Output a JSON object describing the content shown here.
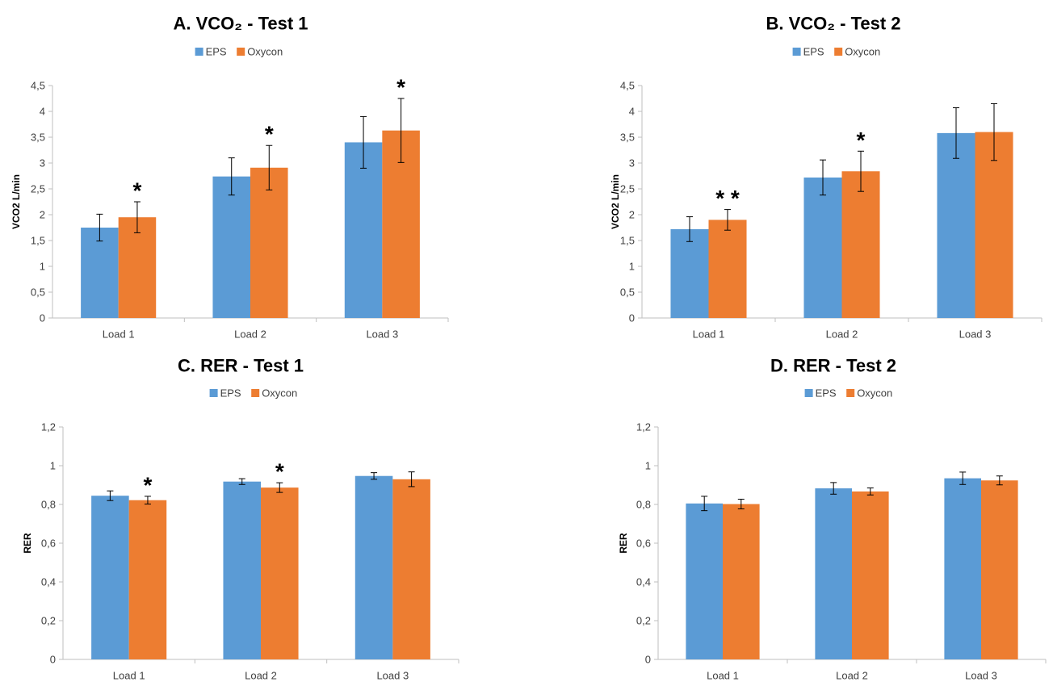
{
  "chart_data": [
    {
      "type": "bar",
      "title": "A. VCO₂ - Test 1",
      "ylabel": "VCO2 L/min",
      "xlabel": "",
      "categories": [
        "Load 1",
        "Load 2",
        "Load 3"
      ],
      "series": [
        {
          "name": "EPS",
          "values": [
            1.75,
            2.74,
            3.4
          ],
          "errors": [
            0.26,
            0.36,
            0.5
          ]
        },
        {
          "name": "Oxycon",
          "values": [
            1.95,
            2.91,
            3.63
          ],
          "errors": [
            0.3,
            0.43,
            0.62
          ]
        }
      ],
      "ylim": [
        0,
        4.5
      ],
      "yticks": [
        0,
        0.5,
        1,
        1.5,
        2,
        2.5,
        3,
        3.5,
        4,
        4.5
      ],
      "ytick_labels": [
        "0",
        "0,5",
        "1",
        "1,5",
        "2",
        "2,5",
        "3",
        "3,5",
        "4",
        "4,5"
      ],
      "significance": [
        "*",
        "*",
        "*"
      ],
      "legend": "top-center",
      "grid": false
    },
    {
      "type": "bar",
      "title": "B. VCO₂ - Test 2",
      "ylabel": "VCO2 L/min",
      "xlabel": "",
      "categories": [
        "Load 1",
        "Load 2",
        "Load 3"
      ],
      "series": [
        {
          "name": "EPS",
          "values": [
            1.72,
            2.72,
            3.58
          ],
          "errors": [
            0.24,
            0.34,
            0.49
          ]
        },
        {
          "name": "Oxycon",
          "values": [
            1.9,
            2.84,
            3.6
          ],
          "errors": [
            0.2,
            0.39,
            0.55
          ]
        }
      ],
      "ylim": [
        0,
        4.5
      ],
      "yticks": [
        0,
        0.5,
        1,
        1.5,
        2,
        2.5,
        3,
        3.5,
        4,
        4.5
      ],
      "ytick_labels": [
        "0",
        "0,5",
        "1",
        "1,5",
        "2",
        "2,5",
        "3",
        "3,5",
        "4",
        "4,5"
      ],
      "significance": [
        "* *",
        "*",
        ""
      ],
      "legend": "top-center",
      "grid": false
    },
    {
      "type": "bar",
      "title": "C. RER - Test 1",
      "ylabel": "RER",
      "xlabel": "",
      "categories": [
        "Load 1",
        "Load 2",
        "Load 3"
      ],
      "series": [
        {
          "name": "EPS",
          "values": [
            0.845,
            0.918,
            0.947
          ],
          "errors": [
            0.025,
            0.015,
            0.017
          ]
        },
        {
          "name": "Oxycon",
          "values": [
            0.822,
            0.887,
            0.93
          ],
          "errors": [
            0.02,
            0.025,
            0.038
          ]
        }
      ],
      "ylim": [
        0,
        1.2
      ],
      "yticks": [
        0,
        0.2,
        0.4,
        0.6,
        0.8,
        1,
        1.2
      ],
      "ytick_labels": [
        "0",
        "0,2",
        "0,4",
        "0,6",
        "0,8",
        "1",
        "1,2"
      ],
      "significance": [
        "*",
        "*",
        ""
      ],
      "legend": "top-center",
      "grid": false
    },
    {
      "type": "bar",
      "title": "D. RER - Test 2",
      "ylabel": "RER",
      "xlabel": "",
      "categories": [
        "Load 1",
        "Load 2",
        "Load 3"
      ],
      "series": [
        {
          "name": "EPS",
          "values": [
            0.805,
            0.883,
            0.935
          ],
          "errors": [
            0.037,
            0.03,
            0.032
          ]
        },
        {
          "name": "Oxycon",
          "values": [
            0.802,
            0.867,
            0.924
          ],
          "errors": [
            0.025,
            0.018,
            0.023
          ]
        }
      ],
      "ylim": [
        0,
        1.2
      ],
      "yticks": [
        0,
        0.2,
        0.4,
        0.6,
        0.8,
        1,
        1.2
      ],
      "ytick_labels": [
        "0",
        "0,2",
        "0,4",
        "0,6",
        "0,8",
        "1",
        "1,2"
      ],
      "significance": [
        "",
        "",
        ""
      ],
      "legend": "top-center",
      "grid": false
    }
  ],
  "colors": {
    "EPS": "#5b9bd5",
    "Oxycon": "#ed7d31",
    "axis": "#bfbfbf",
    "text": "#000000"
  }
}
